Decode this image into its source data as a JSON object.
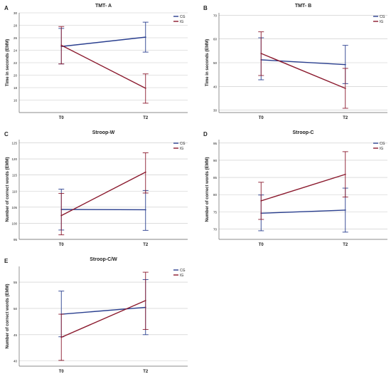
{
  "colors": {
    "CG": "#2a3f8f",
    "IG": "#8b1a2e",
    "grid": "#c8c8c8",
    "axis": "#666666",
    "text": "#222222"
  },
  "chart_data": [
    {
      "panel_letter": "A",
      "type": "line",
      "title": "TMT- A",
      "xlabel": "",
      "ylabel": "Time in seconds (EMM)",
      "categories": [
        "T0",
        "T2"
      ],
      "ylim": [
        14,
        30
      ],
      "yticks": [
        16,
        18,
        20,
        22,
        24,
        26,
        28,
        30
      ],
      "legend_position": "top-right",
      "series": [
        {
          "name": "CG",
          "color": "#2a3f8f",
          "values": [
            24.6,
            26.1
          ],
          "ci_low": [
            21.8,
            23.7
          ],
          "ci_high": [
            27.5,
            28.5
          ]
        },
        {
          "name": "IG",
          "color": "#8b1a2e",
          "values": [
            24.8,
            17.9
          ],
          "ci_low": [
            21.8,
            15.5
          ],
          "ci_high": [
            27.8,
            20.2
          ]
        }
      ]
    },
    {
      "panel_letter": "B",
      "type": "line",
      "title": "TMT- B",
      "xlabel": "",
      "ylabel": "Time in seconds (EMM)",
      "categories": [
        "T0",
        "T2"
      ],
      "ylim": [
        29,
        71
      ],
      "yticks": [
        30,
        40,
        50,
        60,
        70
      ],
      "legend_position": "top-right",
      "series": [
        {
          "name": "CG",
          "color": "#2a3f8f",
          "values": [
            51.2,
            49.2
          ],
          "ci_low": [
            42.8,
            41.2
          ],
          "ci_high": [
            60.5,
            57.3
          ]
        },
        {
          "name": "IG",
          "color": "#8b1a2e",
          "values": [
            53.9,
            39.2
          ],
          "ci_low": [
            44.6,
            30.8
          ],
          "ci_high": [
            63.0,
            47.6
          ]
        }
      ]
    },
    {
      "panel_letter": "C",
      "type": "line",
      "title": "Stroop-W",
      "xlabel": "",
      "ylabel": "Number of correct words (EMM)",
      "categories": [
        "T0",
        "T2"
      ],
      "ylim": [
        95,
        126
      ],
      "yticks": [
        95,
        100,
        105,
        110,
        115,
        120,
        125
      ],
      "legend_position": "top-right",
      "series": [
        {
          "name": "CG",
          "color": "#2a3f8f",
          "values": [
            104.3,
            104.2
          ],
          "ci_low": [
            97.9,
            97.8
          ],
          "ci_high": [
            110.6,
            110.2
          ]
        },
        {
          "name": "IG",
          "color": "#8b1a2e",
          "values": [
            102.4,
            115.9
          ],
          "ci_low": [
            96.4,
            109.4
          ],
          "ci_high": [
            109.3,
            121.9
          ]
        }
      ]
    },
    {
      "panel_letter": "D",
      "type": "line",
      "title": "Stroop-C",
      "xlabel": "",
      "ylabel": "Number of correct words (EMM)",
      "categories": [
        "T0",
        "T2"
      ],
      "ylim": [
        67,
        96
      ],
      "yticks": [
        70,
        75,
        80,
        85,
        90,
        95
      ],
      "legend_position": "top-right",
      "series": [
        {
          "name": "CG",
          "color": "#2a3f8f",
          "values": [
            74.6,
            75.5
          ],
          "ci_low": [
            69.5,
            69.1
          ],
          "ci_high": [
            79.9,
            81.9
          ]
        },
        {
          "name": "IG",
          "color": "#8b1a2e",
          "values": [
            78.2,
            85.9
          ],
          "ci_low": [
            72.8,
            79.3
          ],
          "ci_high": [
            83.6,
            92.5
          ]
        }
      ]
    },
    {
      "panel_letter": "E",
      "type": "line",
      "title": "Stroop-C/W",
      "xlabel": "",
      "ylabel": "Number of correct words (EMM)",
      "categories": [
        "T0",
        "T2"
      ],
      "ylim": [
        39,
        58
      ],
      "yticks": [
        40,
        45,
        50,
        55
      ],
      "legend_position": "top-right",
      "series": [
        {
          "name": "CG",
          "color": "#2a3f8f",
          "values": [
            48.9,
            50.2
          ],
          "ci_low": [
            44.6,
            45.0
          ],
          "ci_high": [
            53.3,
            55.5
          ]
        },
        {
          "name": "IG",
          "color": "#8b1a2e",
          "values": [
            44.5,
            51.5
          ],
          "ci_low": [
            40.1,
            46.0
          ],
          "ci_high": [
            48.9,
            56.9
          ]
        }
      ]
    }
  ]
}
